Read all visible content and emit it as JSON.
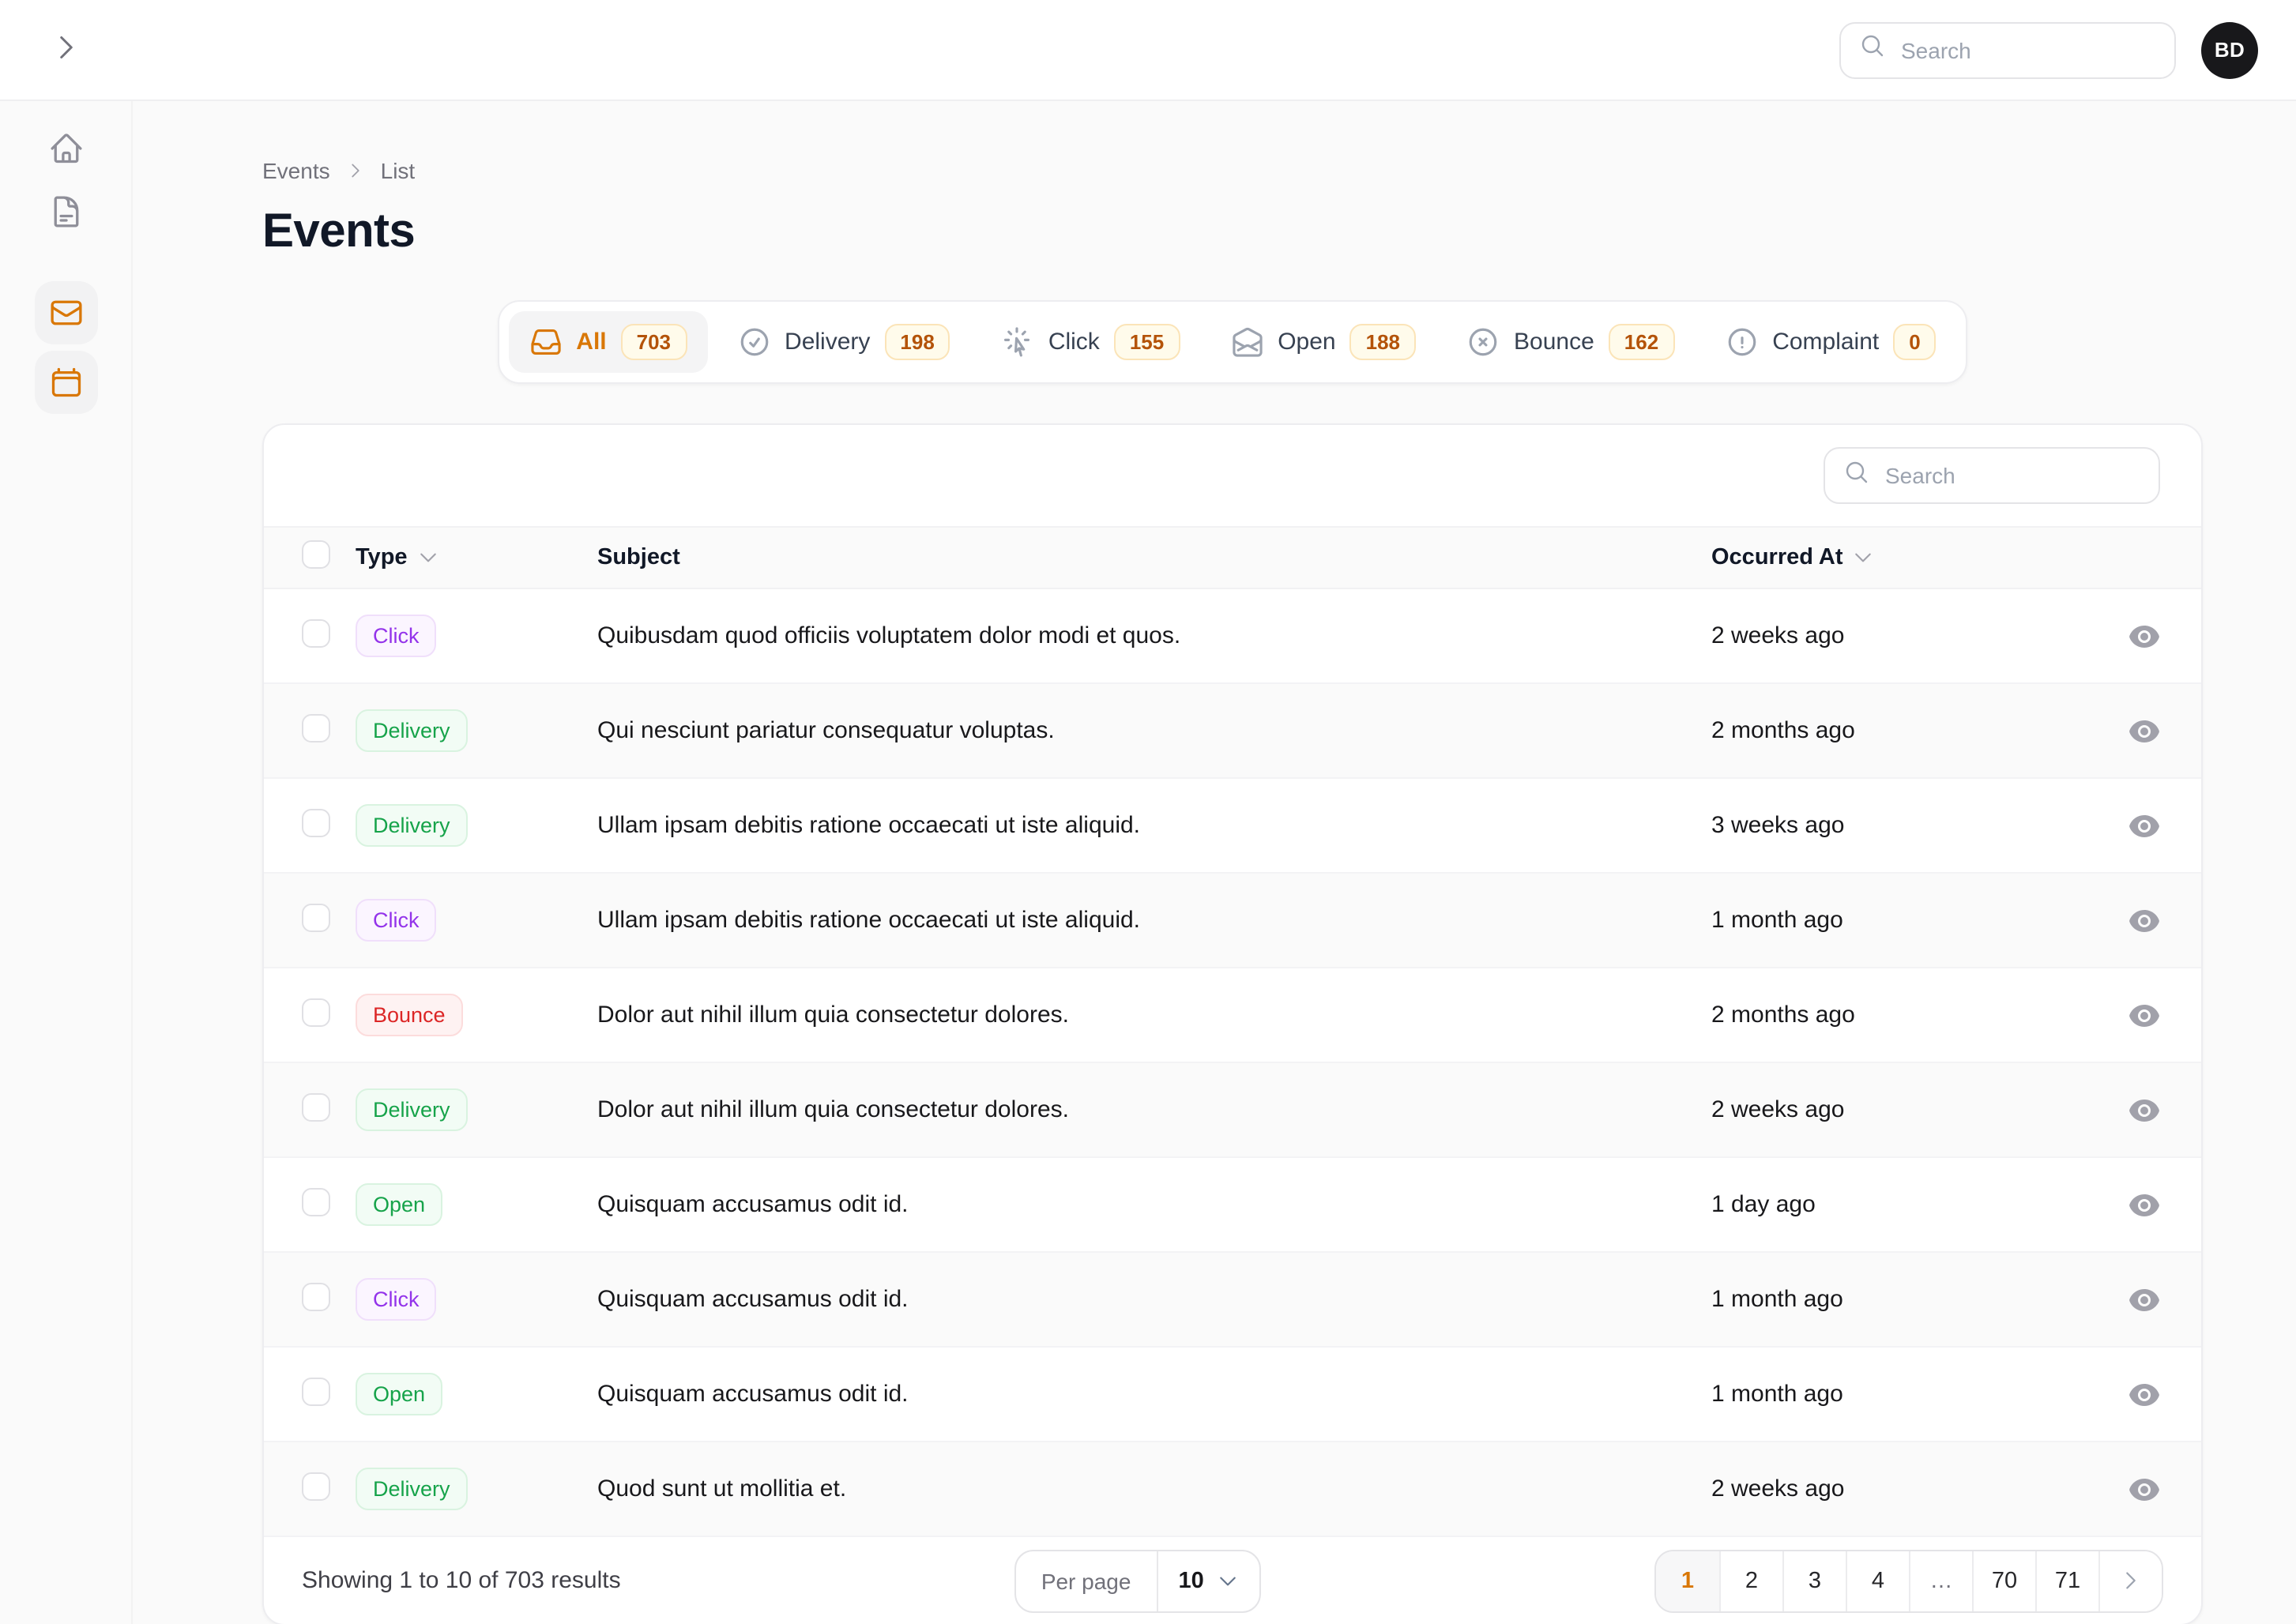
{
  "topbar": {
    "search_placeholder": "Search",
    "avatar_initials": "BD"
  },
  "sidebar": {
    "items": [
      {
        "icon": "home",
        "active": false
      },
      {
        "icon": "document-text",
        "active": false
      },
      {
        "icon": "envelope",
        "active": true
      },
      {
        "icon": "calendar",
        "active": true
      }
    ]
  },
  "breadcrumb": {
    "items": [
      "Events",
      "List"
    ]
  },
  "page": {
    "title": "Events"
  },
  "tabs": [
    {
      "label": "All",
      "count": "703",
      "icon": "inbox",
      "active": true
    },
    {
      "label": "Delivery",
      "count": "198",
      "icon": "check-circle",
      "active": false
    },
    {
      "label": "Click",
      "count": "155",
      "icon": "cursor-click",
      "active": false
    },
    {
      "label": "Open",
      "count": "188",
      "icon": "envelope-open",
      "active": false
    },
    {
      "label": "Bounce",
      "count": "162",
      "icon": "x-circle",
      "active": false
    },
    {
      "label": "Complaint",
      "count": "0",
      "icon": "exclamation-circle",
      "active": false
    }
  ],
  "table": {
    "search_placeholder": "Search",
    "columns": [
      {
        "label": "Type",
        "sortable": true
      },
      {
        "label": "Subject",
        "sortable": false
      },
      {
        "label": "Occurred At",
        "sortable": true
      }
    ],
    "rows": [
      {
        "type": "Click",
        "type_color": "purple",
        "subject": "Quibusdam quod officiis voluptatem dolor modi et quos.",
        "occurred_at": "2 weeks ago"
      },
      {
        "type": "Delivery",
        "type_color": "green",
        "subject": "Qui nesciunt pariatur consequatur voluptas.",
        "occurred_at": "2 months ago"
      },
      {
        "type": "Delivery",
        "type_color": "green",
        "subject": "Ullam ipsam debitis ratione occaecati ut iste aliquid.",
        "occurred_at": "3 weeks ago"
      },
      {
        "type": "Click",
        "type_color": "purple",
        "subject": "Ullam ipsam debitis ratione occaecati ut iste aliquid.",
        "occurred_at": "1 month ago"
      },
      {
        "type": "Bounce",
        "type_color": "red",
        "subject": "Dolor aut nihil illum quia consectetur dolores.",
        "occurred_at": "2 months ago"
      },
      {
        "type": "Delivery",
        "type_color": "green",
        "subject": "Dolor aut nihil illum quia consectetur dolores.",
        "occurred_at": "2 weeks ago"
      },
      {
        "type": "Open",
        "type_color": "green",
        "subject": "Quisquam accusamus odit id.",
        "occurred_at": "1 day ago"
      },
      {
        "type": "Click",
        "type_color": "purple",
        "subject": "Quisquam accusamus odit id.",
        "occurred_at": "1 month ago"
      },
      {
        "type": "Open",
        "type_color": "green",
        "subject": "Quisquam accusamus odit id.",
        "occurred_at": "1 month ago"
      },
      {
        "type": "Delivery",
        "type_color": "green",
        "subject": "Quod sunt ut mollitia et.",
        "occurred_at": "2 weeks ago"
      }
    ]
  },
  "pagination": {
    "summary": "Showing 1 to 10 of 703 results",
    "per_page_label": "Per page",
    "per_page_value": "10",
    "pages": [
      "1",
      "2",
      "3",
      "4",
      "…",
      "70",
      "71"
    ],
    "active_page": "1"
  },
  "colors": {
    "primary": "#d97706",
    "badge_amber_text": "#b45309",
    "badge_purple": "#9333ea",
    "badge_green": "#16a34a",
    "badge_red": "#dc2626"
  }
}
